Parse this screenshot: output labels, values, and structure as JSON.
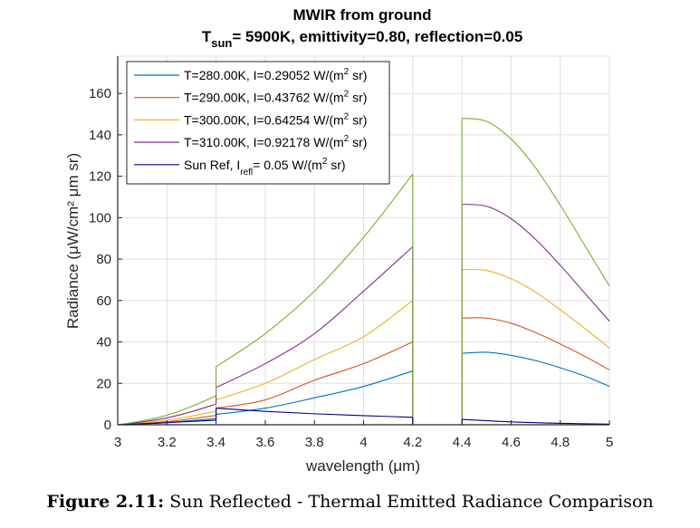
{
  "chart_data": {
    "type": "line",
    "title": "MWIR from ground",
    "subtitle": {
      "prefix": "T",
      "sub": "sun",
      "rest": "= 5900K, emittivity=0.80, reflection=0.05"
    },
    "xlabel": "wavelength (μm)",
    "ylabel": "Radiance (μW/cm² μm sr)",
    "xlim": [
      3,
      5
    ],
    "ylim": [
      0,
      178
    ],
    "xticks": [
      3,
      3.2,
      3.4,
      3.6,
      3.8,
      4,
      4.2,
      4.4,
      4.6,
      4.8,
      5
    ],
    "xtick_labels": [
      "3",
      "3.2",
      "3.4",
      "3.6",
      "3.8",
      "4",
      "4.2",
      "4.4",
      "4.6",
      "4.8",
      "5"
    ],
    "yticks": [
      0,
      20,
      40,
      60,
      80,
      100,
      120,
      140,
      160
    ],
    "ytick_labels": [
      "0",
      "20",
      "40",
      "60",
      "80",
      "100",
      "120",
      "140",
      "160"
    ],
    "grid": true,
    "legend_position": "top-left",
    "series": [
      {
        "name": "T=280.00K, I=0.29052 W/(m² sr)",
        "legend": {
          "main": "T=280.00K, I=0.29052 W/(m",
          "sup": "2",
          "tail": " sr)"
        },
        "color": "#0072BD",
        "x": [
          3.0,
          3.1,
          3.2,
          3.3,
          3.4,
          3.4,
          3.6,
          3.8,
          4.0,
          4.2,
          4.2,
          4.3,
          4.4,
          4.4,
          4.5,
          4.6,
          4.7,
          4.8,
          4.9,
          5.0
        ],
        "y": [
          0,
          0.4,
          1.0,
          2.0,
          3.0,
          5.0,
          8.0,
          13.0,
          18.5,
          26.0,
          0,
          0,
          0,
          34.5,
          35.0,
          33.5,
          31.0,
          27.5,
          23.5,
          18.5
        ]
      },
      {
        "name": "T=290.00K, I=0.43762 W/(m² sr)",
        "legend": {
          "main": "T=290.00K, I=0.43762 W/(m",
          "sup": "2",
          "tail": " sr)"
        },
        "color": "#D95319",
        "x": [
          3.0,
          3.1,
          3.2,
          3.3,
          3.4,
          3.4,
          3.6,
          3.8,
          4.0,
          4.2,
          4.2,
          4.3,
          4.4,
          4.4,
          4.5,
          4.6,
          4.7,
          4.8,
          4.9,
          5.0
        ],
        "y": [
          0,
          0.6,
          1.5,
          2.9,
          4.5,
          8.0,
          12.0,
          21.5,
          29.5,
          40.0,
          0,
          0,
          0,
          51.5,
          51.5,
          49.0,
          44.5,
          39.0,
          33.0,
          26.5
        ]
      },
      {
        "name": "T=300.00K, I=0.64254 W/(m² sr)",
        "legend": {
          "main": "T=300.00K, I=0.64254 W/(m",
          "sup": "2",
          "tail": " sr)"
        },
        "color": "#EDB120",
        "x": [
          3.0,
          3.1,
          3.2,
          3.3,
          3.4,
          3.4,
          3.6,
          3.8,
          4.0,
          4.2,
          4.2,
          4.3,
          4.4,
          4.4,
          4.5,
          4.6,
          4.7,
          4.8,
          4.9,
          5.0
        ],
        "y": [
          0,
          0.9,
          2.2,
          4.2,
          6.5,
          12.0,
          20.0,
          31.5,
          42.5,
          60.0,
          0,
          0,
          0,
          75.0,
          74.5,
          70.5,
          64.0,
          55.5,
          46.5,
          37.0
        ]
      },
      {
        "name": "T=310.00K, I=0.92178 W/(m² sr)",
        "legend": {
          "main": "T=310.00K, I=0.92178 W/(m",
          "sup": "2",
          "tail": " sr)"
        },
        "color": "#7E2F8E",
        "x": [
          3.0,
          3.1,
          3.2,
          3.3,
          3.4,
          3.4,
          3.6,
          3.8,
          4.0,
          4.2,
          4.2,
          4.3,
          4.4,
          4.4,
          4.5,
          4.6,
          4.7,
          4.8,
          4.9,
          5.0
        ],
        "y": [
          0,
          1.4,
          3.3,
          6.3,
          10.0,
          18.0,
          29.5,
          44.0,
          64.5,
          86.0,
          0,
          0,
          0,
          106.5,
          105.5,
          99.5,
          89.5,
          77.0,
          63.5,
          50.0
        ]
      },
      {
        "name": "",
        "legend": null,
        "color": "#77AC30",
        "x": [
          3.0,
          3.1,
          3.2,
          3.3,
          3.4,
          3.4,
          3.6,
          3.8,
          4.0,
          4.2,
          4.2,
          4.3,
          4.4,
          4.4,
          4.5,
          4.6,
          4.7,
          4.8,
          4.9,
          5.0
        ],
        "y": [
          0,
          1.9,
          4.6,
          8.8,
          14.0,
          28.0,
          44.0,
          64.5,
          90.5,
          121.0,
          0,
          0,
          0,
          148.0,
          146.5,
          138.0,
          124.0,
          106.0,
          86.5,
          67.0
        ]
      },
      {
        "name": "Sun Ref, I_refl = 0.05 W/(m² sr)",
        "legend": {
          "main": "Sun Ref,  I",
          "sub": "refl",
          "rest": "=  0.05 W/(m",
          "sup": "2",
          "tail": " sr)"
        },
        "color": "#00007F",
        "x": [
          3.0,
          3.1,
          3.2,
          3.3,
          3.4,
          3.4,
          3.6,
          3.8,
          4.0,
          4.2,
          4.2,
          4.3,
          4.4,
          4.4,
          4.6,
          4.8,
          5.0
        ],
        "y": [
          0,
          0.5,
          1.0,
          1.6,
          2.2,
          8.0,
          6.5,
          5.3,
          4.4,
          3.6,
          0,
          0,
          0,
          2.6,
          1.4,
          0.7,
          0.3
        ]
      }
    ]
  },
  "caption": {
    "label": "Figure 2.11:",
    "text": " Sun Reflected - Thermal Emitted Radiance Comparison"
  }
}
